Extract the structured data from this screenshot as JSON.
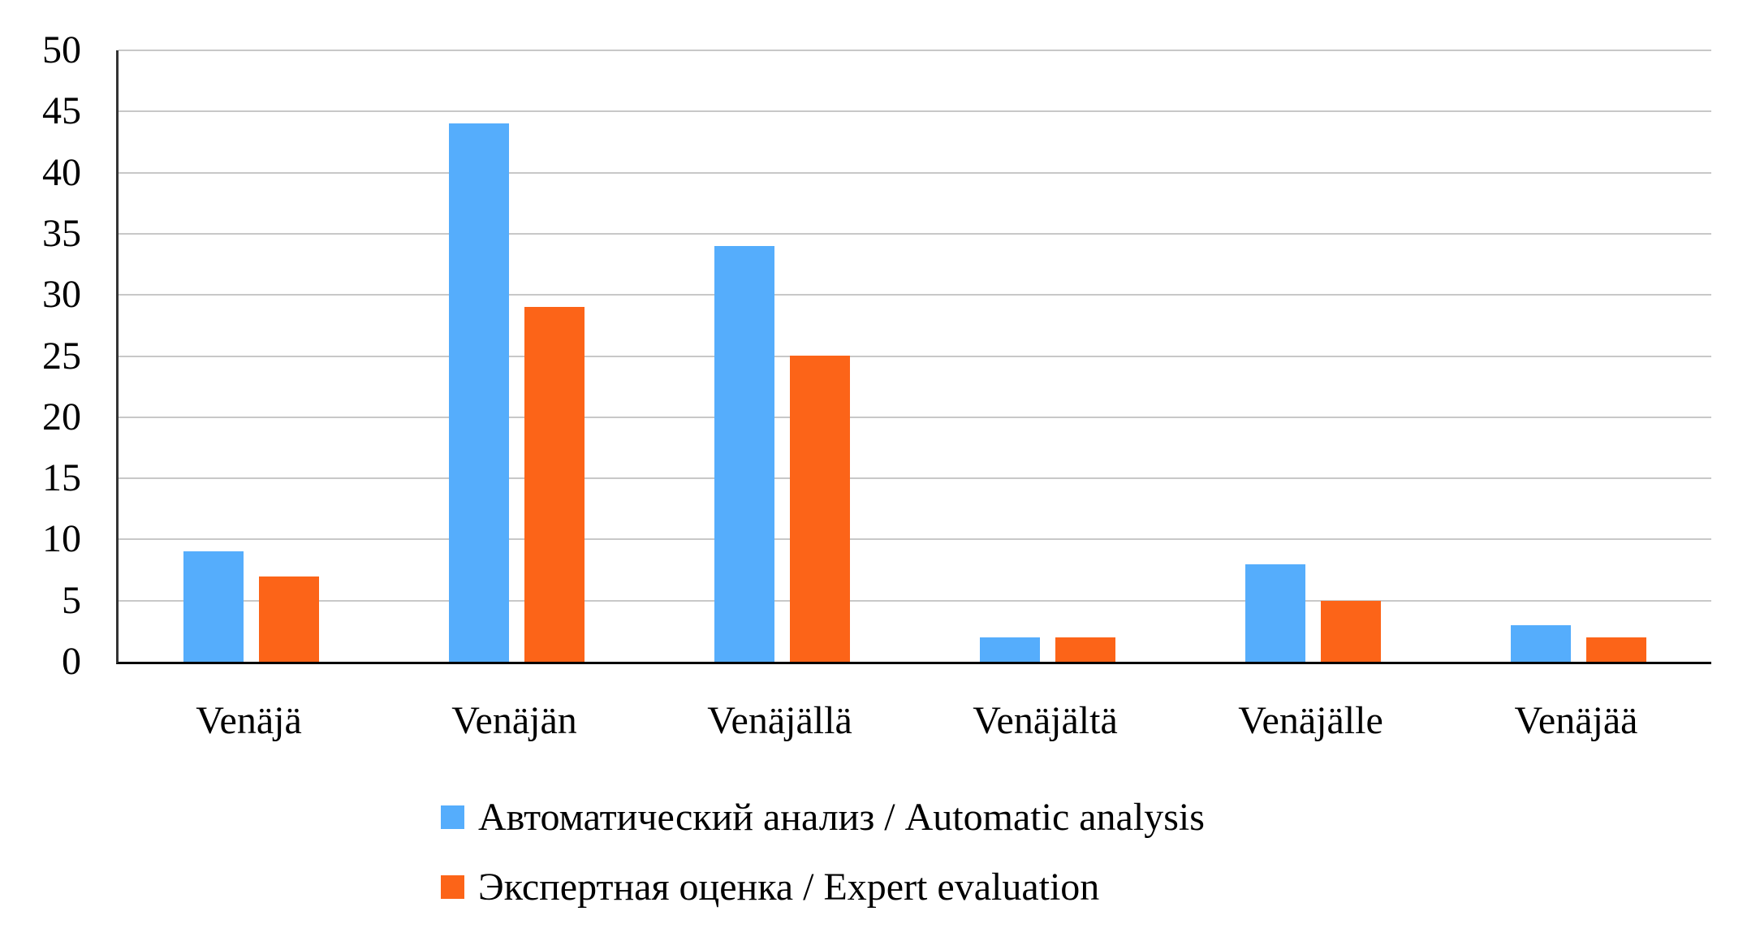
{
  "chart_data": {
    "type": "bar",
    "title": "",
    "categories": [
      "Venäjä",
      "Venäjän",
      "Venäjällä",
      "Venäjältä",
      "Venäjälle",
      "Venäjää"
    ],
    "series": [
      {
        "name": "Автоматический анализ / Automatic analysis",
        "color": "#55ADFC",
        "values": [
          9,
          44,
          34,
          2,
          8,
          3
        ]
      },
      {
        "name": "Экспертная оценка / Expert evaluation",
        "color": "#FC6418",
        "values": [
          7,
          29,
          25,
          2,
          5,
          2
        ]
      }
    ],
    "xlabel": "",
    "ylabel": "",
    "ylim": [
      0,
      50
    ],
    "ytick_step": 5,
    "yticks": [
      0,
      5,
      10,
      15,
      20,
      25,
      30,
      35,
      40,
      45,
      50
    ],
    "grid": true,
    "legend_position": "bottom-left"
  },
  "colors": {
    "background": "#FFFFFF",
    "gridline": "#C8C8C8",
    "y_axis_line": "#333333",
    "x_axis_line": "#000000",
    "text": "#000000"
  }
}
